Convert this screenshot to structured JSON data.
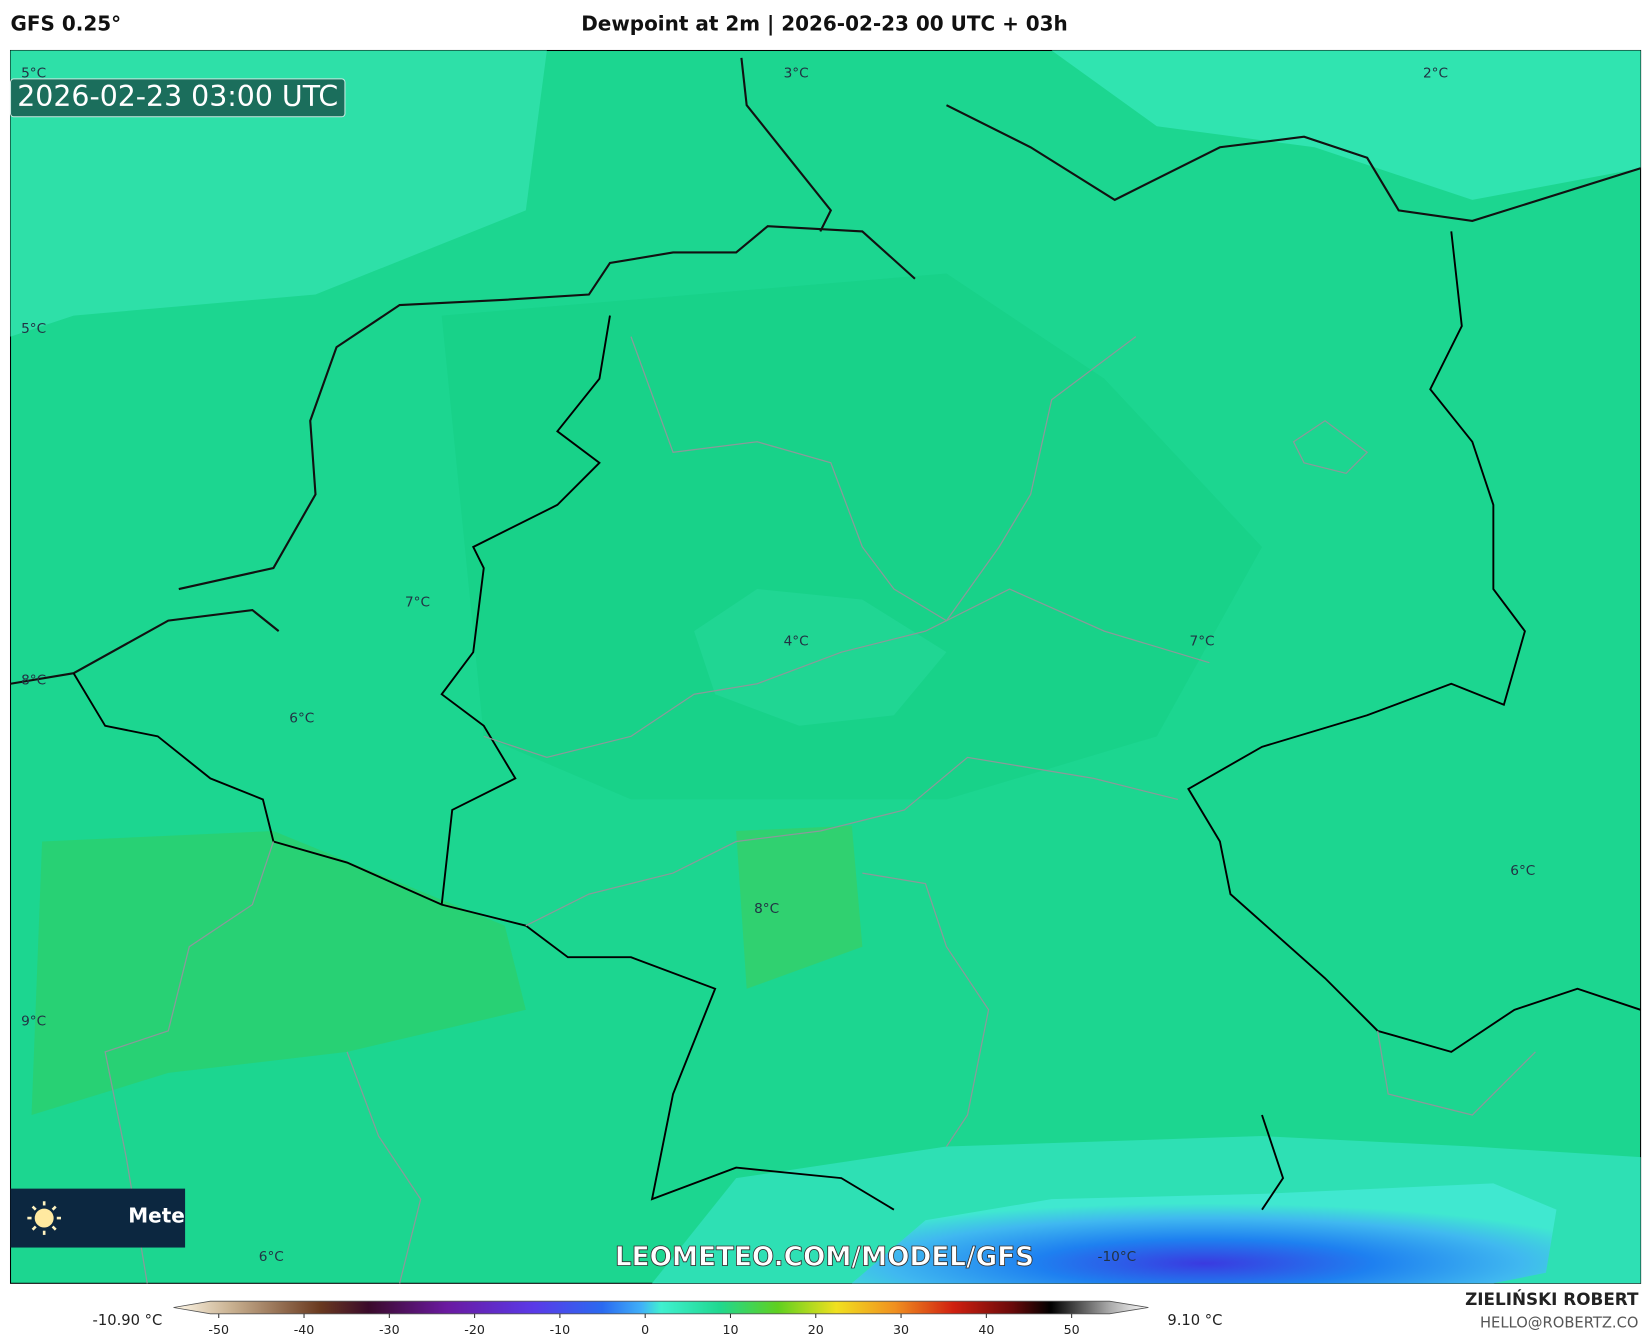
{
  "header": {
    "model": "GFS 0.25°",
    "title": "Dewpoint at 2m | 2026-02-23 00 UTC + 03h"
  },
  "timestamp": "2026-02-23 03:00 UTC",
  "map_labels": [
    "5°C",
    "3°C",
    "2°C",
    "5°C",
    "7°C",
    "4°C",
    "7°C",
    "8°C",
    "6°C",
    "6°C",
    "8°C",
    "9°C",
    "6°C",
    "-10°C"
  ],
  "watermark": "LEOMETEO.COM/MODEL/GFS",
  "badge": "Mete",
  "colorbar": {
    "min_label": "-10.90 °C",
    "max_label": "9.10 °C",
    "ticks": [
      -50,
      -40,
      -30,
      -20,
      -10,
      0,
      10,
      20,
      30,
      40,
      50
    ]
  },
  "credit": {
    "name": "ZIELIŃSKI ROBERT",
    "email": "HELLO@ROBERTZ.CO"
  }
}
